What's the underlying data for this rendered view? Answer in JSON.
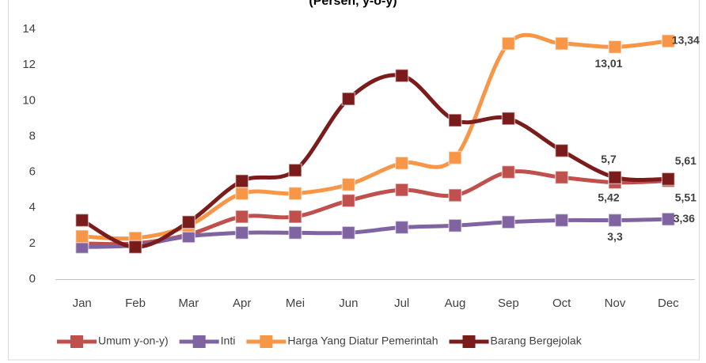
{
  "chart_data": {
    "type": "line",
    "title": "(Persen, y-o-y)",
    "categories": [
      "Jan",
      "Feb",
      "Mar",
      "Apr",
      "Mei",
      "Jun",
      "Jul",
      "Aug",
      "Sep",
      "Oct",
      "Nov",
      "Dec"
    ],
    "ylim": [
      0,
      14
    ],
    "yticks": [
      0,
      2,
      4,
      6,
      8,
      10,
      12,
      14
    ],
    "grid": false,
    "legend": "bottom",
    "series": [
      {
        "name": "Umum  y-on-y)",
        "color": "#c0504d",
        "values": [
          2.0,
          2.0,
          2.5,
          3.5,
          3.5,
          4.4,
          5.0,
          4.7,
          6.0,
          5.7,
          5.42,
          5.51
        ],
        "value_labels": [
          null,
          null,
          null,
          null,
          null,
          null,
          null,
          null,
          null,
          null,
          "5,42",
          "5,51"
        ]
      },
      {
        "name": "Inti",
        "color": "#8064a2",
        "values": [
          1.8,
          1.9,
          2.4,
          2.6,
          2.6,
          2.6,
          2.9,
          3.0,
          3.2,
          3.3,
          3.3,
          3.36
        ],
        "value_labels": [
          null,
          null,
          null,
          null,
          null,
          null,
          null,
          null,
          null,
          null,
          "3,3",
          "3,36"
        ]
      },
      {
        "name": "Harga Yang Diatur Pemerintah",
        "color": "#f79646",
        "values": [
          2.4,
          2.3,
          3.0,
          4.8,
          4.8,
          5.3,
          6.5,
          6.8,
          13.2,
          13.2,
          13.01,
          13.34
        ],
        "value_labels": [
          null,
          null,
          null,
          null,
          null,
          null,
          null,
          null,
          null,
          null,
          "13,01",
          "13,34"
        ]
      },
      {
        "name": "Barang Bergejolak",
        "color": "#7b1c1c",
        "values": [
          3.3,
          1.8,
          3.2,
          5.5,
          6.1,
          10.1,
          11.4,
          8.9,
          9.0,
          7.2,
          5.7,
          5.61
        ],
        "value_labels": [
          null,
          null,
          null,
          null,
          null,
          null,
          null,
          null,
          null,
          null,
          "5,7",
          "5,61"
        ]
      }
    ]
  }
}
